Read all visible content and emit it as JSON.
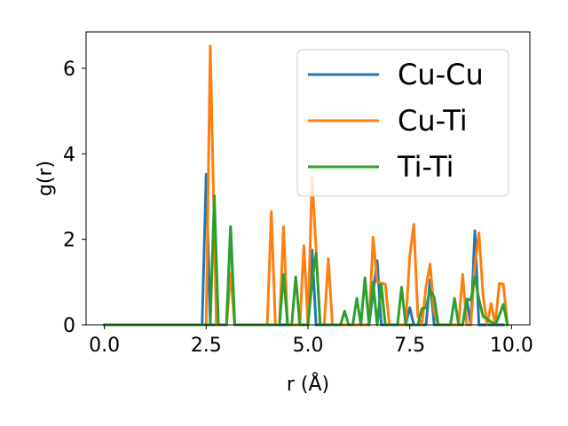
{
  "chart_data": {
    "type": "line",
    "xlabel": "r (Å)",
    "ylabel": "g(r)",
    "xlim": [
      -0.45,
      10.45
    ],
    "ylim": [
      0,
      6.85
    ],
    "x_ticks": [
      0.0,
      2.5,
      5.0,
      7.5,
      10.0
    ],
    "x_tick_labels": [
      "0.0",
      "2.5",
      "5.0",
      "7.5",
      "10.0"
    ],
    "y_ticks": [
      0,
      2,
      4,
      6
    ],
    "y_tick_labels": [
      "0",
      "2",
      "4",
      "6"
    ],
    "grid": false,
    "legend_position": "top-right",
    "series": [
      {
        "name": "Cu-Cu",
        "color": "#1f77b4",
        "points": [
          [
            0.0,
            0
          ],
          [
            2.4,
            0
          ],
          [
            2.5,
            3.52
          ],
          [
            2.6,
            0
          ],
          [
            3.0,
            0
          ],
          [
            3.1,
            2.3
          ],
          [
            3.2,
            0
          ],
          [
            5.0,
            0
          ],
          [
            5.1,
            1.75
          ],
          [
            5.2,
            0
          ],
          [
            6.5,
            0
          ],
          [
            6.7,
            1.5
          ],
          [
            6.8,
            0
          ],
          [
            7.4,
            0
          ],
          [
            7.5,
            0.4
          ],
          [
            7.6,
            0
          ],
          [
            7.9,
            0
          ],
          [
            8.0,
            1.05
          ],
          [
            8.1,
            0
          ],
          [
            8.8,
            0
          ],
          [
            8.9,
            0.6
          ],
          [
            9.0,
            0
          ],
          [
            9.1,
            2.2
          ],
          [
            9.2,
            0
          ],
          [
            9.8,
            0
          ]
        ]
      },
      {
        "name": "Cu-Ti",
        "color": "#ff7f0e",
        "points": [
          [
            0.0,
            0
          ],
          [
            2.5,
            0
          ],
          [
            2.6,
            6.52
          ],
          [
            2.75,
            0
          ],
          [
            3.0,
            0
          ],
          [
            3.1,
            1.2
          ],
          [
            3.2,
            0
          ],
          [
            4.0,
            0
          ],
          [
            4.1,
            2.65
          ],
          [
            4.2,
            0
          ],
          [
            4.3,
            0
          ],
          [
            4.4,
            2.3
          ],
          [
            4.5,
            0
          ],
          [
            4.7,
            0
          ],
          [
            4.8,
            0
          ],
          [
            4.9,
            1.85
          ],
          [
            5.0,
            0
          ],
          [
            5.1,
            3.45
          ],
          [
            5.2,
            1.75
          ],
          [
            5.3,
            0
          ],
          [
            5.4,
            0
          ],
          [
            5.5,
            1.55
          ],
          [
            5.6,
            0
          ],
          [
            6.4,
            0
          ],
          [
            6.5,
            0
          ],
          [
            6.6,
            2.05
          ],
          [
            6.7,
            1.0
          ],
          [
            6.9,
            0.95
          ],
          [
            7.0,
            0
          ],
          [
            7.4,
            0
          ],
          [
            7.5,
            1.6
          ],
          [
            7.6,
            2.35
          ],
          [
            7.7,
            0.2
          ],
          [
            7.8,
            0
          ],
          [
            7.9,
            0.9
          ],
          [
            8.0,
            1.42
          ],
          [
            8.1,
            0.3
          ],
          [
            8.2,
            0
          ],
          [
            8.7,
            0
          ],
          [
            8.8,
            1.18
          ],
          [
            8.9,
            0
          ],
          [
            9.0,
            0
          ],
          [
            9.1,
            1.4
          ],
          [
            9.2,
            2.15
          ],
          [
            9.3,
            0.7
          ],
          [
            9.4,
            0
          ],
          [
            9.5,
            0.5
          ],
          [
            9.6,
            0
          ],
          [
            9.7,
            0.97
          ],
          [
            9.8,
            0.95
          ],
          [
            9.9,
            0
          ]
        ]
      },
      {
        "name": "Ti-Ti",
        "color": "#2ca02c",
        "points": [
          [
            0.0,
            0
          ],
          [
            2.6,
            0
          ],
          [
            2.7,
            3.02
          ],
          [
            2.8,
            0
          ],
          [
            3.0,
            0
          ],
          [
            3.1,
            2.3
          ],
          [
            3.2,
            0
          ],
          [
            4.3,
            0
          ],
          [
            4.4,
            1.18
          ],
          [
            4.5,
            0
          ],
          [
            4.6,
            0
          ],
          [
            4.7,
            1.12
          ],
          [
            4.8,
            0
          ],
          [
            5.0,
            0
          ],
          [
            5.1,
            1.0
          ],
          [
            5.2,
            1.68
          ],
          [
            5.3,
            0
          ],
          [
            5.8,
            0
          ],
          [
            5.9,
            0.32
          ],
          [
            6.0,
            0
          ],
          [
            6.1,
            0
          ],
          [
            6.2,
            0.62
          ],
          [
            6.3,
            0
          ],
          [
            6.4,
            1.1
          ],
          [
            6.5,
            0
          ],
          [
            6.6,
            1.0
          ],
          [
            6.7,
            0
          ],
          [
            6.8,
            0.95
          ],
          [
            6.9,
            0
          ],
          [
            7.2,
            0
          ],
          [
            7.3,
            0.88
          ],
          [
            7.4,
            0
          ],
          [
            7.7,
            0
          ],
          [
            7.8,
            0.38
          ],
          [
            7.9,
            0.4
          ],
          [
            8.0,
            0.82
          ],
          [
            8.1,
            0.65
          ],
          [
            8.2,
            0
          ],
          [
            8.5,
            0
          ],
          [
            8.6,
            0.62
          ],
          [
            8.7,
            0
          ],
          [
            8.8,
            0
          ],
          [
            8.9,
            0.6
          ],
          [
            9.0,
            0.58
          ],
          [
            9.1,
            1.12
          ],
          [
            9.2,
            0.6
          ],
          [
            9.3,
            0.2
          ],
          [
            9.6,
            0
          ],
          [
            9.7,
            0.22
          ],
          [
            9.8,
            0.48
          ],
          [
            9.9,
            0
          ]
        ]
      }
    ]
  }
}
